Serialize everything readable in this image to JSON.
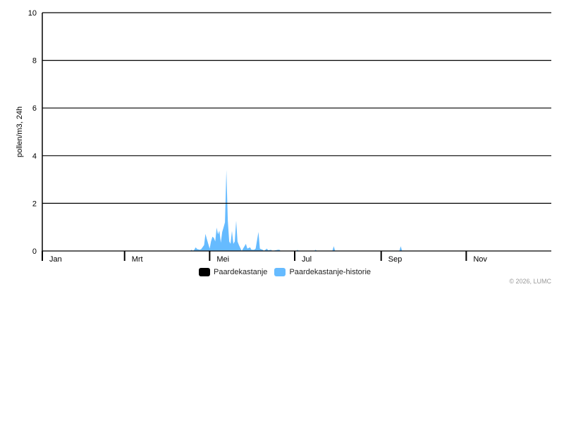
{
  "chart_data": {
    "type": "area",
    "ylabel": "pollen/m3, 24h",
    "ylim": [
      0,
      10
    ],
    "yticks": [
      0,
      2,
      4,
      6,
      8,
      10
    ],
    "grid": true,
    "xlim_day_of_year": [
      1,
      366
    ],
    "month_labels": [
      {
        "label": "Jan",
        "day": 1
      },
      {
        "label": "Mrt",
        "day": 60
      },
      {
        "label": "Mei",
        "day": 121
      },
      {
        "label": "Jul",
        "day": 182
      },
      {
        "label": "Sep",
        "day": 244
      },
      {
        "label": "Nov",
        "day": 305
      }
    ],
    "legend_position": "bottom",
    "series": [
      {
        "name": "Paardekastanje",
        "color": "#000000",
        "points": []
      },
      {
        "name": "Paardekastanje-historie",
        "color": "#66bbff",
        "points": [
          [
            107,
            0
          ],
          [
            108,
            0.05
          ],
          [
            109,
            0
          ],
          [
            110,
            0.05
          ],
          [
            111,
            0.15
          ],
          [
            112,
            0.08
          ],
          [
            114,
            0.05
          ],
          [
            115,
            0.08
          ],
          [
            117,
            0.25
          ],
          [
            118,
            0.72
          ],
          [
            119,
            0.5
          ],
          [
            120,
            0.3
          ],
          [
            121,
            0.1
          ],
          [
            122,
            0.4
          ],
          [
            123,
            0.6
          ],
          [
            124,
            0.55
          ],
          [
            125,
            0.4
          ],
          [
            126,
            0.98
          ],
          [
            127,
            0.7
          ],
          [
            128,
            0.85
          ],
          [
            129,
            0.35
          ],
          [
            130,
            0.8
          ],
          [
            131,
            1.0
          ],
          [
            132,
            1.2
          ],
          [
            133,
            3.4
          ],
          [
            134,
            1.3
          ],
          [
            135,
            0.4
          ],
          [
            136,
            0.3
          ],
          [
            137,
            0.84
          ],
          [
            138,
            0.3
          ],
          [
            139,
            0.4
          ],
          [
            140,
            1.27
          ],
          [
            141,
            0.4
          ],
          [
            142,
            0.25
          ],
          [
            144,
            0
          ],
          [
            145,
            0.1
          ],
          [
            147,
            0.3
          ],
          [
            148,
            0.1
          ],
          [
            150,
            0.15
          ],
          [
            151,
            0.05
          ],
          [
            153,
            0.05
          ],
          [
            154,
            0.1
          ],
          [
            156,
            0.8
          ],
          [
            157,
            0.1
          ],
          [
            159,
            0.05
          ],
          [
            160,
            0
          ],
          [
            162,
            0.1
          ],
          [
            163,
            0.03
          ],
          [
            165,
            0.05
          ],
          [
            166,
            0
          ],
          [
            170,
            0.05
          ],
          [
            171,
            0.05
          ],
          [
            172,
            0
          ],
          [
            183,
            0
          ],
          [
            184,
            0.05
          ],
          [
            185,
            0
          ],
          [
            196,
            0
          ],
          [
            197,
            0.05
          ],
          [
            198,
            0
          ],
          [
            209,
            0
          ],
          [
            210,
            0.2
          ],
          [
            211,
            0
          ],
          [
            257,
            0
          ],
          [
            258,
            0.2
          ],
          [
            259,
            0
          ]
        ]
      }
    ]
  },
  "credit": "© 2026, LUMC"
}
